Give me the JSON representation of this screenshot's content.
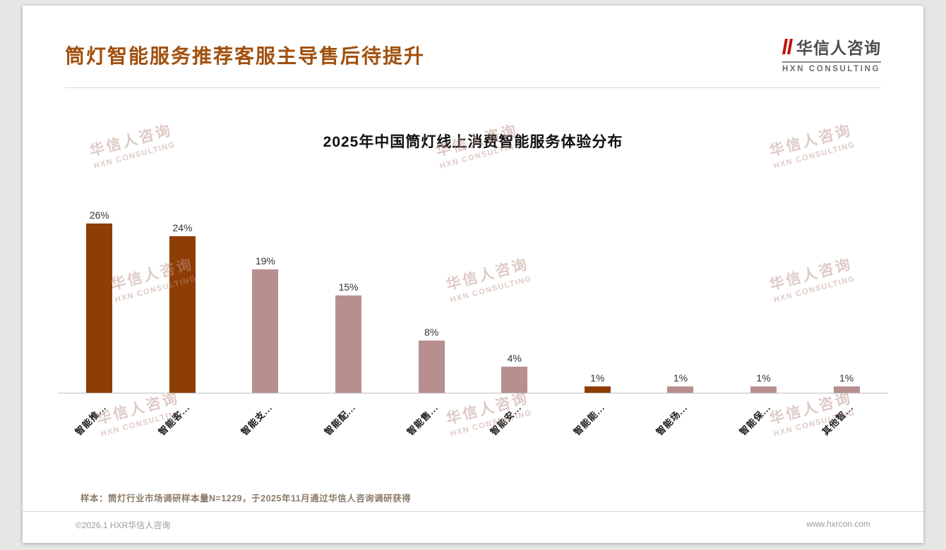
{
  "header": {
    "title": "筒灯智能服务推荐客服主导售后待提升"
  },
  "logo": {
    "name_cn": "华信人咨询",
    "name_en": "HXN CONSULTING"
  },
  "watermark": {
    "line1": "华信人咨询",
    "line2": "HXN CONSULTING"
  },
  "chart_data": {
    "type": "bar",
    "title": "2025年中国筒灯线上消费智能服务体验分布",
    "categories": [
      "智能推...",
      "智能客...",
      "智能支...",
      "智能配...",
      "智能售...",
      "智能安...",
      "智能能...",
      "智能场...",
      "智能保...",
      "其他智..."
    ],
    "values": [
      26,
      24,
      19,
      15,
      8,
      4,
      1,
      1,
      1,
      1
    ],
    "unit": "%",
    "bar_styles": [
      "dark",
      "dark",
      "light",
      "light",
      "light",
      "light",
      "dark",
      "light",
      "light",
      "light"
    ],
    "xlabel": "",
    "ylabel": "",
    "ylim": [
      0,
      30
    ],
    "grid": false,
    "legend": false,
    "value_labels_shown": true
  },
  "colors": {
    "title": "#a0500e",
    "bar_dark": "#8e3d04",
    "bar_light": "#b78f8f",
    "accent_red": "#c0110e",
    "watermark": "#bd968a"
  },
  "footnote": {
    "text": "样本：筒灯行业市场调研样本量N=1229，于2025年11月通过华信人咨询调研获得"
  },
  "footer": {
    "left": "©2026.1 HXR华信人咨询",
    "right": "www.hxrcon.com"
  }
}
